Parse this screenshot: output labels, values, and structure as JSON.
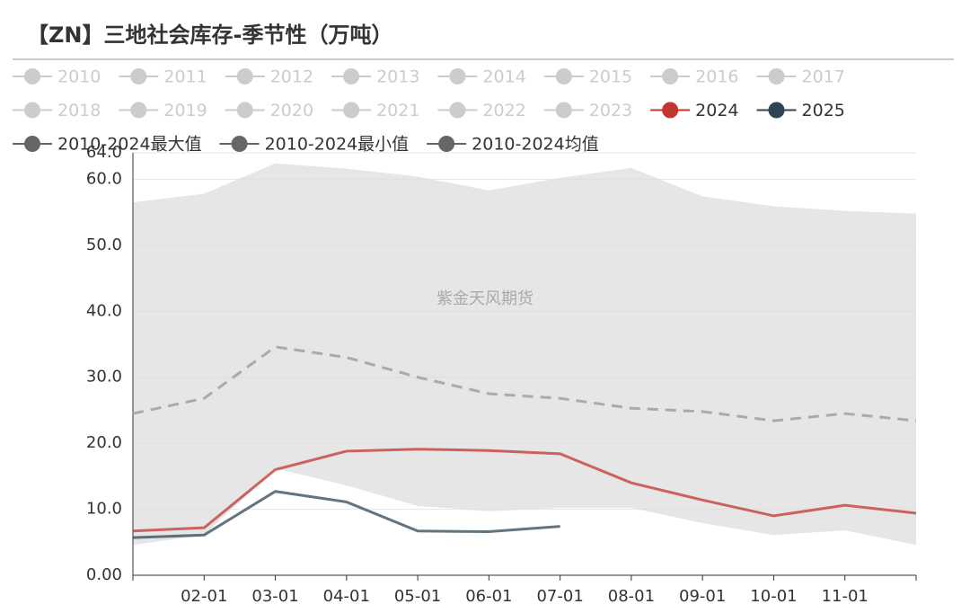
{
  "chart_data": {
    "type": "line",
    "title": "【ZN】三地社会库存-季节性（万吨）",
    "watermark": "紫金天风期货",
    "categories": [
      null,
      "02-01",
      "03-01",
      "04-01",
      "05-01",
      "06-01",
      "07-01",
      "08-01",
      "09-01",
      "10-01",
      "11-01",
      null
    ],
    "ylim": [
      0,
      64
    ],
    "yticks": [
      {
        "value": 0,
        "label": "0.00"
      },
      {
        "value": 10,
        "label": "10.0"
      },
      {
        "value": 20,
        "label": "20.0"
      },
      {
        "value": 30,
        "label": "30.0"
      },
      {
        "value": 40,
        "label": "40.0"
      },
      {
        "value": 50,
        "label": "50.0"
      },
      {
        "value": 60,
        "label": "60.0"
      },
      {
        "value": 64,
        "label": "64.0"
      }
    ],
    "grid": true,
    "series": [
      {
        "name": "2010",
        "color": "#cccccc",
        "active": false,
        "values": [
          null,
          null,
          null,
          null,
          null,
          null,
          null,
          null,
          null,
          null,
          null,
          null
        ]
      },
      {
        "name": "2011",
        "color": "#cccccc",
        "active": false,
        "values": [
          null,
          null,
          null,
          null,
          null,
          null,
          null,
          null,
          null,
          null,
          null,
          null
        ]
      },
      {
        "name": "2012",
        "color": "#cccccc",
        "active": false,
        "values": [
          null,
          null,
          null,
          null,
          null,
          null,
          null,
          null,
          null,
          null,
          null,
          null
        ]
      },
      {
        "name": "2013",
        "color": "#cccccc",
        "active": false,
        "values": [
          null,
          null,
          null,
          null,
          null,
          null,
          null,
          null,
          null,
          null,
          null,
          null
        ]
      },
      {
        "name": "2014",
        "color": "#cccccc",
        "active": false,
        "values": [
          null,
          null,
          null,
          null,
          null,
          null,
          null,
          null,
          null,
          null,
          null,
          null
        ]
      },
      {
        "name": "2015",
        "color": "#cccccc",
        "active": false,
        "values": [
          null,
          null,
          null,
          null,
          null,
          null,
          null,
          null,
          null,
          null,
          null,
          null
        ]
      },
      {
        "name": "2016",
        "color": "#cccccc",
        "active": false,
        "values": [
          null,
          null,
          null,
          null,
          null,
          null,
          null,
          null,
          null,
          null,
          null,
          null
        ]
      },
      {
        "name": "2017",
        "color": "#cccccc",
        "active": false,
        "values": [
          null,
          null,
          null,
          null,
          null,
          null,
          null,
          null,
          null,
          null,
          null,
          null
        ]
      },
      {
        "name": "2018",
        "color": "#cccccc",
        "active": false,
        "values": [
          null,
          null,
          null,
          null,
          null,
          null,
          null,
          null,
          null,
          null,
          null,
          null
        ]
      },
      {
        "name": "2019",
        "color": "#cccccc",
        "active": false,
        "values": [
          null,
          null,
          null,
          null,
          null,
          null,
          null,
          null,
          null,
          null,
          null,
          null
        ]
      },
      {
        "name": "2020",
        "color": "#cccccc",
        "active": false,
        "values": [
          null,
          null,
          null,
          null,
          null,
          null,
          null,
          null,
          null,
          null,
          null,
          null
        ]
      },
      {
        "name": "2021",
        "color": "#cccccc",
        "active": false,
        "values": [
          null,
          null,
          null,
          null,
          null,
          null,
          null,
          null,
          null,
          null,
          null,
          null
        ]
      },
      {
        "name": "2022",
        "color": "#cccccc",
        "active": false,
        "values": [
          null,
          null,
          null,
          null,
          null,
          null,
          null,
          null,
          null,
          null,
          null,
          null
        ]
      },
      {
        "name": "2023",
        "color": "#cccccc",
        "active": false,
        "values": [
          null,
          null,
          null,
          null,
          null,
          null,
          null,
          null,
          null,
          null,
          null,
          null
        ]
      },
      {
        "name": "2024",
        "color": "#c23531",
        "values": [
          6.7,
          7.2,
          16.0,
          18.8,
          19.1,
          18.9,
          18.4,
          14.0,
          11.4,
          9.0,
          10.6,
          9.4
        ]
      },
      {
        "name": "2025",
        "color": "#2f4554",
        "values": [
          5.7,
          6.1,
          12.7,
          11.1,
          6.7,
          6.6,
          7.4,
          null,
          null,
          null,
          null,
          null
        ]
      },
      {
        "name": "2010-2024最大值",
        "color": "#666666",
        "role": "band-max",
        "values": [
          56.5,
          57.8,
          62.4,
          61.6,
          60.4,
          58.3,
          60.2,
          61.7,
          57.4,
          55.9,
          55.2,
          54.8
        ]
      },
      {
        "name": "2010-2024最小值",
        "color": "#666666",
        "role": "band-min",
        "values": [
          4.6,
          6.1,
          16.2,
          13.6,
          10.5,
          9.7,
          10.2,
          10.2,
          7.9,
          6.1,
          6.8,
          4.6
        ]
      },
      {
        "name": "2010-2024均值",
        "color": "#666666",
        "role": "dashed",
        "values": [
          24.5,
          26.8,
          34.6,
          33.0,
          30.0,
          27.5,
          26.8,
          25.3,
          24.8,
          23.4,
          24.5,
          23.4
        ]
      }
    ]
  }
}
